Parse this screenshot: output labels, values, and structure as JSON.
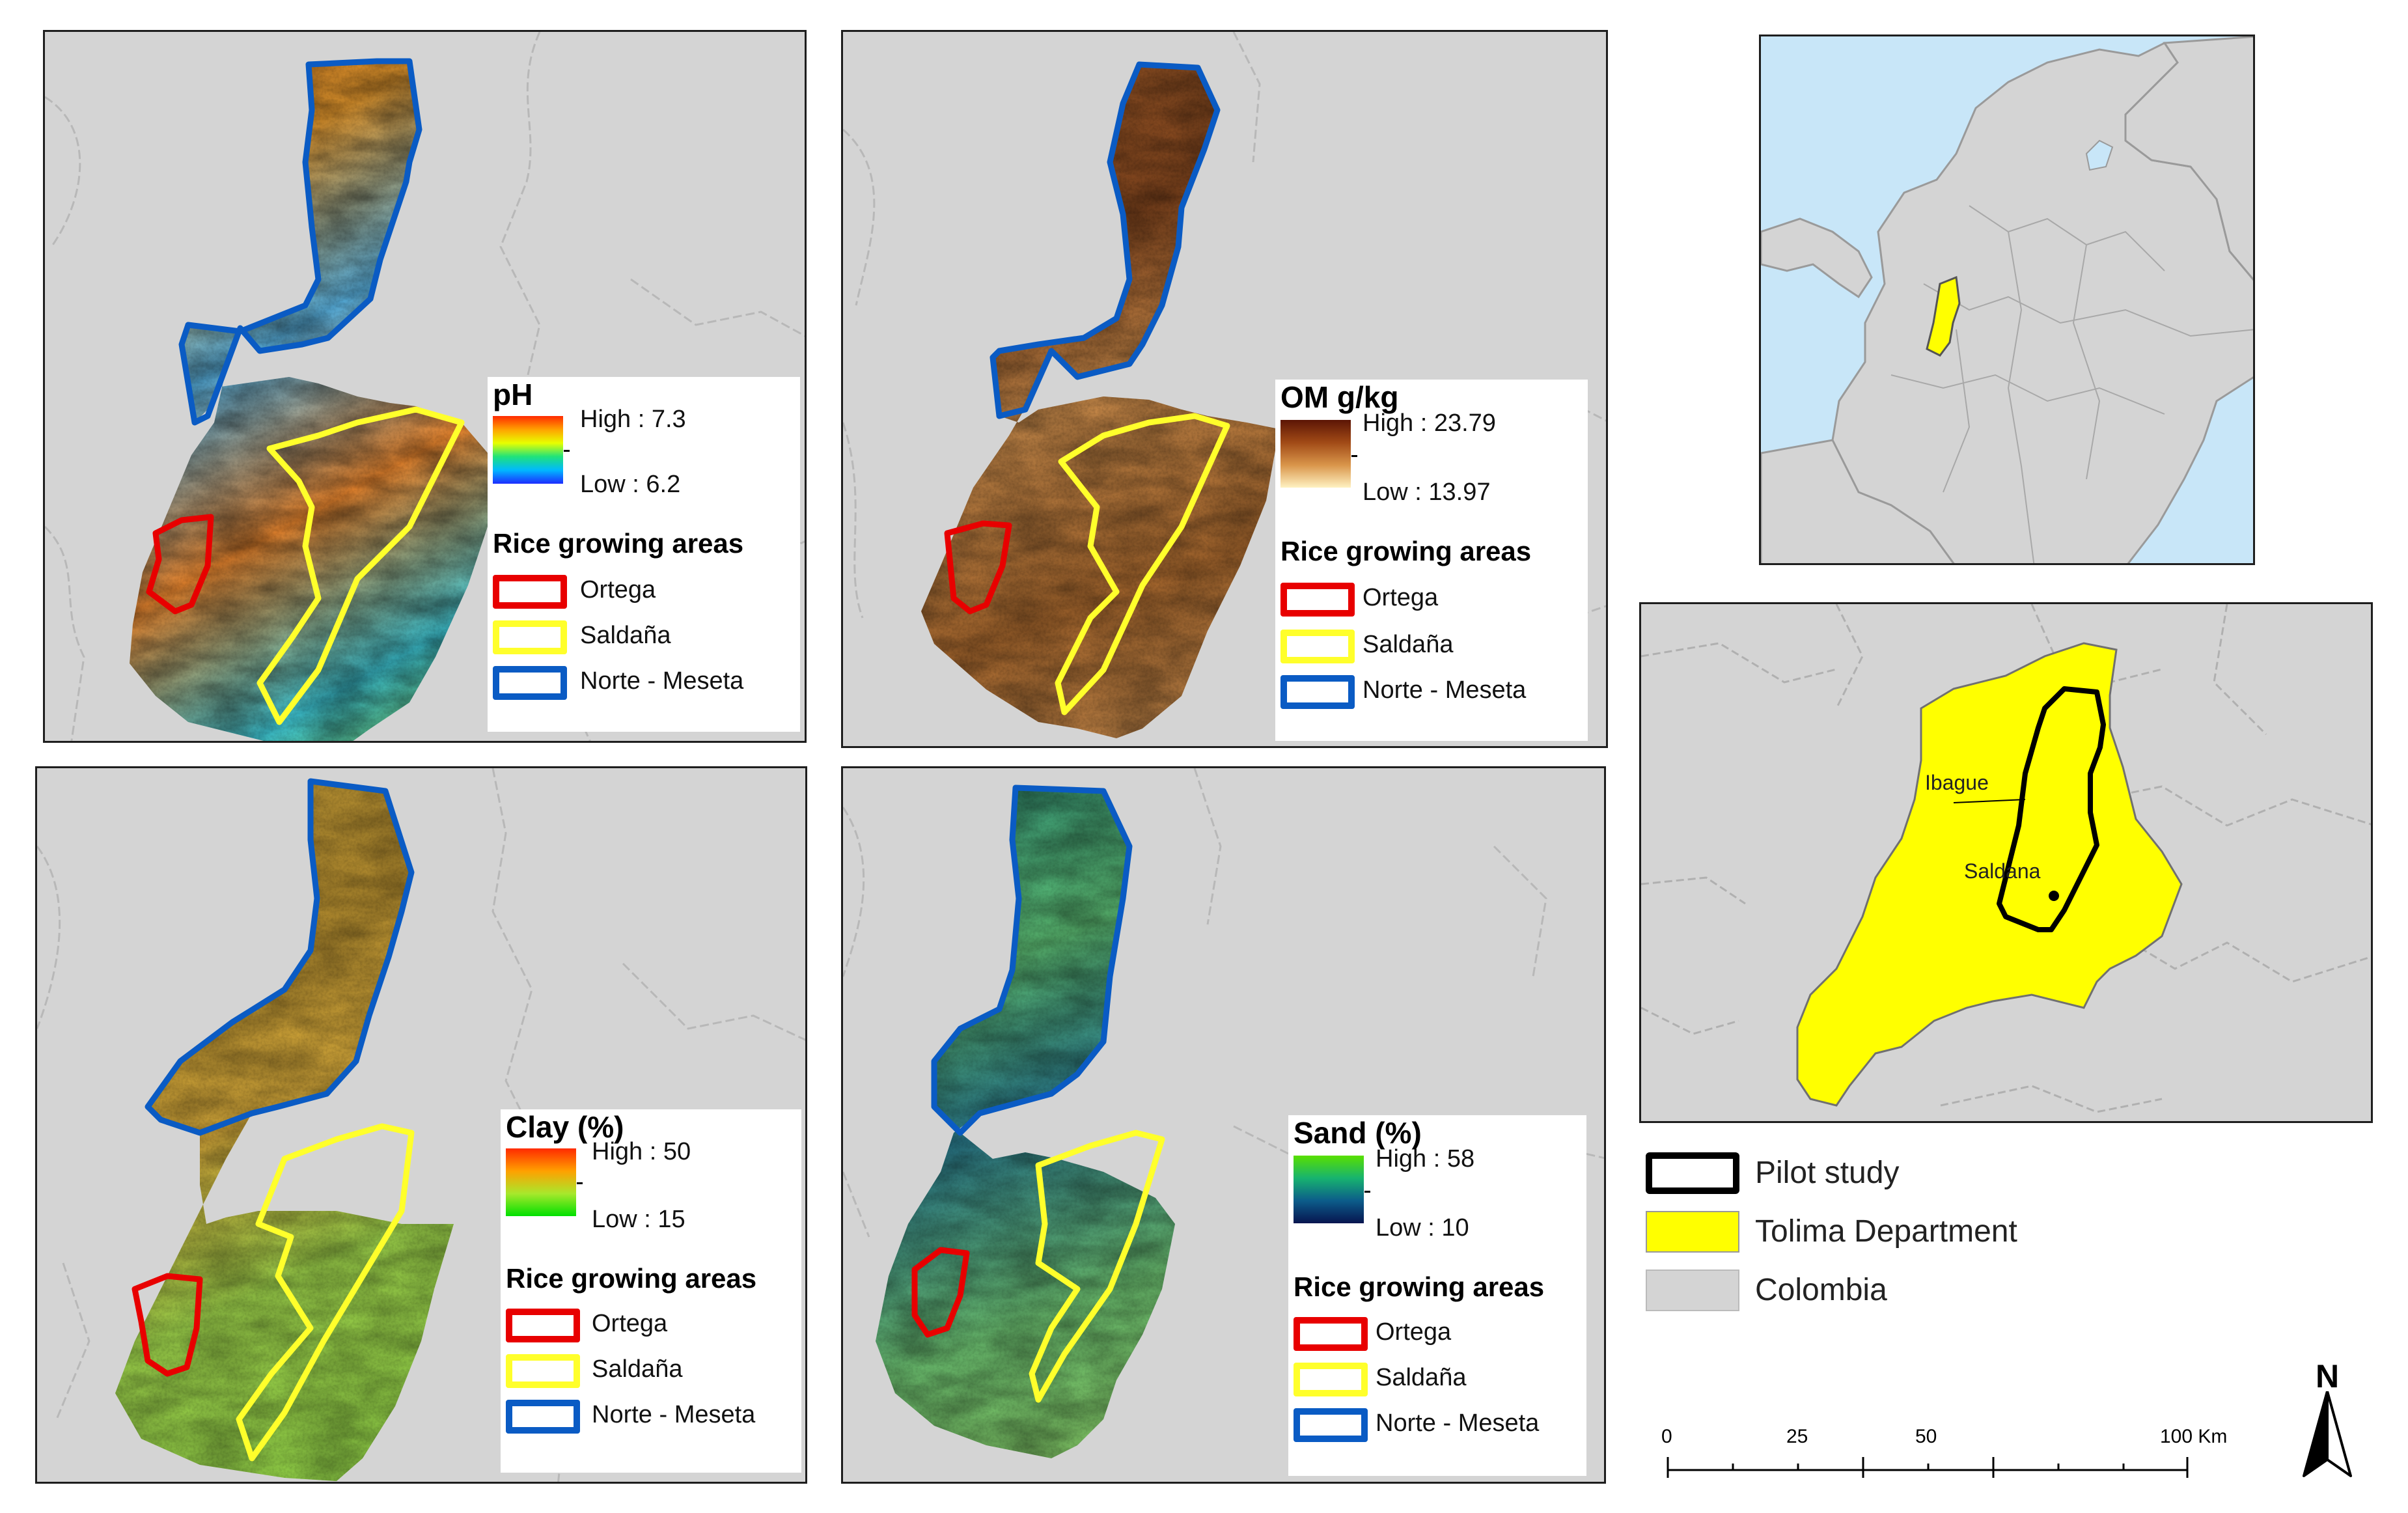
{
  "panels": {
    "ph": {
      "title": "pH",
      "high": "High : 7.3",
      "low": "Low : 6.2",
      "ramp": [
        "#ff2a00",
        "#ffa200",
        "#e8ff00",
        "#1fe37a",
        "#00b8ff",
        "#1d2cff"
      ],
      "rice_title": "Rice growing areas",
      "items": [
        "Ortega",
        "Saldaña",
        "Norte - Meseta"
      ]
    },
    "om": {
      "title": "OM g/kg",
      "high": "High : 23.79",
      "low": "Low : 13.97",
      "ramp": [
        "#5c1505",
        "#a14a16",
        "#d9954a",
        "#fff2c2"
      ],
      "rice_title": "Rice growing areas",
      "items": [
        "Ortega",
        "Saldaña",
        "Norte - Meseta"
      ]
    },
    "clay": {
      "title": "Clay (%)",
      "high": "High : 50",
      "low": "Low : 15",
      "ramp": [
        "#ff2a00",
        "#ffa000",
        "#a8e82c",
        "#00e000"
      ],
      "rice_title": "Rice growing areas",
      "items": [
        "Ortega",
        "Saldaña",
        "Norte - Meseta"
      ]
    },
    "sand": {
      "title": "Sand (%)",
      "high": "High : 58",
      "low": "Low : 10",
      "ramp": [
        "#58e000",
        "#17b36f",
        "#0c5c8a",
        "#07154f"
      ],
      "rice_title": "Rice growing areas",
      "items": [
        "Ortega",
        "Saldaña",
        "Norte - Meseta"
      ]
    }
  },
  "colors": {
    "ortega": "#e80000",
    "saldana": "#ffff2b",
    "norte_meseta": "#0a5bc4",
    "tolima": "#ffff00",
    "colombia": "#d4d4d4",
    "ocean": "#c8e6f8",
    "pilot": "#000000"
  },
  "locator": {
    "cities": [
      "Ibague",
      "Saldana"
    ]
  },
  "main_legend": {
    "items": [
      "Pilot study",
      "Tolima Department",
      "Colombia"
    ]
  },
  "scale_bar": {
    "ticks": [
      "0",
      "25",
      "50",
      "100 Km"
    ]
  },
  "north_arrow": {
    "label": "N"
  }
}
